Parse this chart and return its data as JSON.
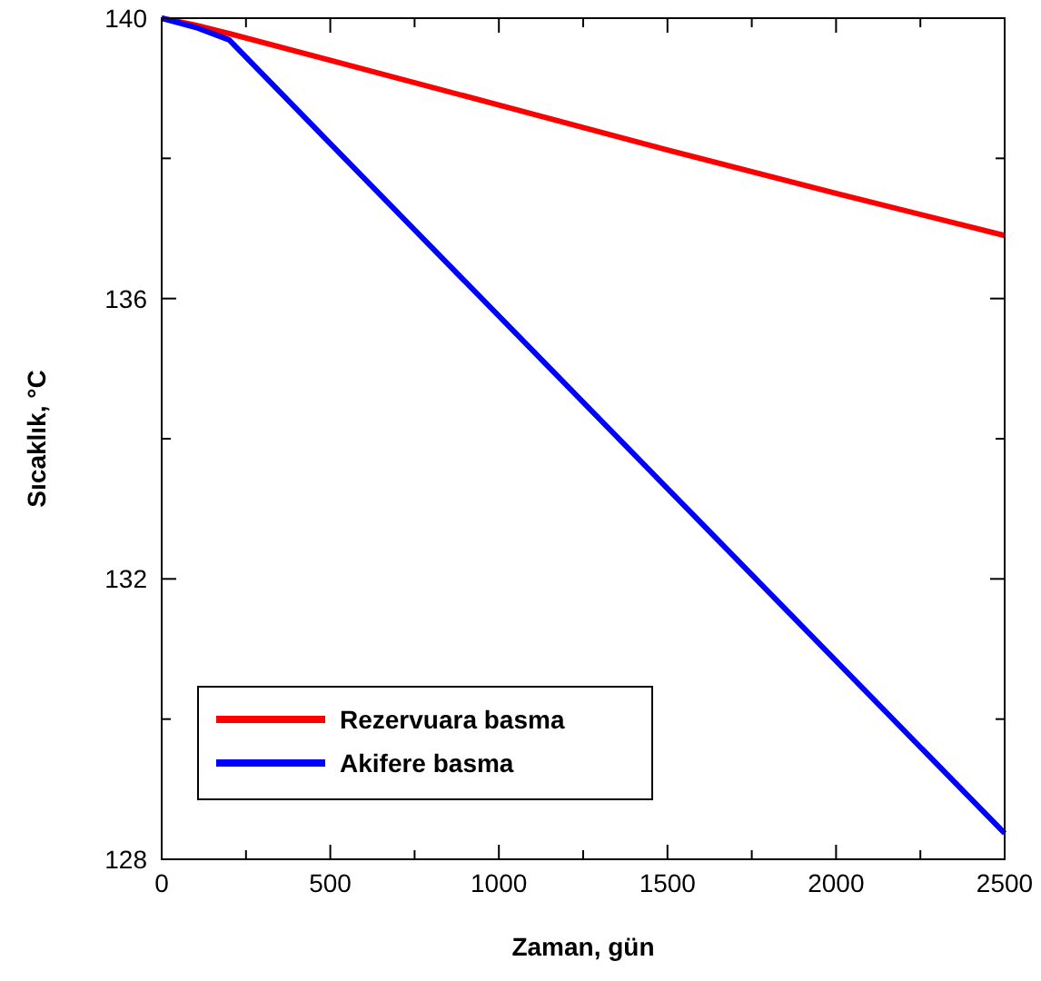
{
  "chart_data": {
    "type": "line",
    "xlabel": "Zaman, gün",
    "ylabel": "Sıcaklık, °C",
    "xlim": [
      0,
      2500
    ],
    "ylim": [
      128,
      140
    ],
    "xticks": [
      0,
      {
        "value": 250,
        "label": null
      },
      500,
      {
        "value": 750,
        "label": null
      },
      1000,
      {
        "value": 1250,
        "label": null
      },
      1500,
      {
        "value": 1750,
        "label": null
      },
      2000,
      {
        "value": 2250,
        "label": null
      },
      2500
    ],
    "yticks": [
      128,
      {
        "value": 130,
        "label": null
      },
      132,
      {
        "value": 134,
        "label": null
      },
      136,
      {
        "value": 138,
        "label": null
      },
      140
    ],
    "x": [
      0,
      100,
      200,
      500,
      1000,
      1500,
      2000,
      2500
    ],
    "series": [
      {
        "name": "Rezervuara basma",
        "color": "#ff0000",
        "values": [
          140,
          139.9,
          139.78,
          139.4,
          138.76,
          138.12,
          137.5,
          136.9
        ]
      },
      {
        "name": "Akifere basma",
        "color": "#0000ff",
        "values": [
          140,
          139.87,
          139.69,
          138.21,
          135.75,
          133.29,
          130.83,
          128.37
        ]
      }
    ],
    "legend": "bottom left",
    "grid": false,
    "marker": "none",
    "line_style": "solid"
  }
}
